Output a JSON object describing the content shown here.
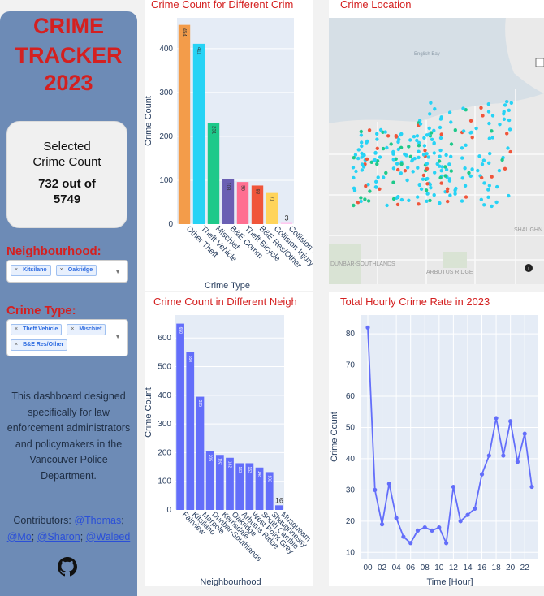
{
  "sidebar": {
    "title_lines": [
      "CRIME",
      "TRACKER",
      "2023"
    ],
    "count_card": {
      "label_line1": "Selected",
      "label_line2": "Crime Count",
      "value_line1": "732 out of",
      "value_line2": "5749"
    },
    "neighbourhood": {
      "label": "Neighbourhood:",
      "selected": [
        "Kitsilano",
        "Oakridge"
      ]
    },
    "crime_type": {
      "label": "Crime Type:",
      "selected": [
        "Theft Vehicle",
        "Mischief",
        "B&E Res/Other"
      ]
    },
    "description": "This dashboard designed specifically for law enforcement administrators and policymakers in the Vancouver Police Department.",
    "contributors_label": "Contributors:",
    "contributors": [
      "@Thomas",
      "@Mo",
      "@Sharon",
      "@Waleed"
    ],
    "github_icon": "github-icon"
  },
  "panels": {
    "crime_type_chart_title": "Crime Count for Different Crim",
    "map_title": "Crime Location",
    "neigh_chart_title": "Crime Count in Different Neigh",
    "hourly_title": "Total Hourly Crime Rate in 2023"
  },
  "map": {
    "place_labels": [
      "English Bay",
      "DUNBAR-SOUTHLANDS",
      "ARBUTUS RIDGE",
      "SHAUGHN"
    ]
  },
  "chart_data": [
    {
      "type": "bar",
      "title": "Crime Count for Different Crim",
      "xlabel": "Crime Type",
      "ylabel": "Crime Count",
      "categories": [
        "Other Theft",
        "Theft Vehicle",
        "Mischief",
        "B&E Comm",
        "Theft Bicycle",
        "B&E Res/Other",
        "Collision Injury",
        "Collision Fatal"
      ],
      "values": [
        454,
        411,
        231,
        103,
        96,
        88,
        71,
        3
      ],
      "value_labels": [
        "454",
        "411",
        "231",
        "103",
        "96",
        "88",
        "71",
        "3"
      ],
      "colors": [
        "#f39c4a",
        "#27d3f5",
        "#1ec98a",
        "#6a5fb3",
        "#ff6f91",
        "#f0553a",
        "#ffd45a",
        "#ffcaf0"
      ],
      "ylim": [
        0,
        470
      ],
      "yticks": [
        0,
        100,
        200,
        300,
        400
      ]
    },
    {
      "type": "bar",
      "title": "Crime Count in Different Neigh",
      "xlabel": "Neighbourhood",
      "ylabel": "Crime Count",
      "categories": [
        "Fairview",
        "Kitsilano",
        "Marpole",
        "Dunbar-Southlands",
        "Kerrisdale",
        "Oakridge",
        "Arbutus Ridge",
        "West Point Grey",
        "South Cambie",
        "Shaughnessy",
        "Musqueam"
      ],
      "values": [
        650,
        550,
        395,
        205,
        192,
        182,
        163,
        163,
        148,
        132,
        16
      ],
      "value_labels": [
        "650",
        "550",
        "395",
        "205",
        "192",
        "182",
        "163",
        "163",
        "148",
        "132",
        "16"
      ],
      "color": "#636efa",
      "ylim": [
        0,
        680
      ],
      "yticks": [
        0,
        100,
        200,
        300,
        400,
        500,
        600
      ]
    },
    {
      "type": "line",
      "title": "Total Hourly Crime Rate in 2023",
      "xlabel": "Time [Hour]",
      "ylabel": "Crime Count",
      "x": [
        0,
        1,
        2,
        3,
        4,
        5,
        6,
        7,
        8,
        9,
        10,
        11,
        12,
        13,
        14,
        15,
        16,
        17,
        18,
        19,
        20,
        21,
        22,
        23
      ],
      "y": [
        82,
        30,
        19,
        32,
        21,
        15,
        13,
        17,
        18,
        17,
        18,
        13,
        31,
        20,
        22,
        24,
        35,
        41,
        53,
        41,
        52,
        39,
        48,
        31
      ],
      "xticks": [
        "00",
        "02",
        "04",
        "06",
        "08",
        "10",
        "12",
        "14",
        "16",
        "18",
        "20",
        "22"
      ],
      "yticks": [
        10,
        20,
        30,
        40,
        50,
        60,
        70,
        80
      ],
      "ylim": [
        8,
        86
      ],
      "color": "#636efa"
    }
  ]
}
